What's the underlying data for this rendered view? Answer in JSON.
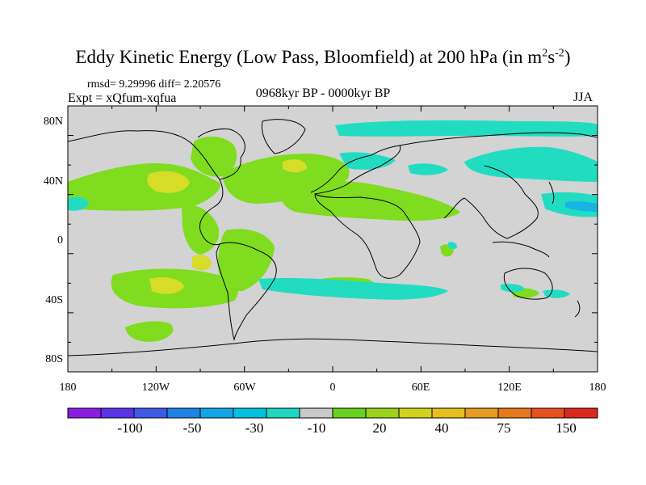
{
  "title_text": "Eddy Kinetic Energy (Low Pass, Bloomfield) at 200 hPa (in m",
  "title_units_sq": "2",
  "title_units_s": "s",
  "title_units_exp": "-2",
  "title_close": ")",
  "stats_line": "rmsd= 9.29996 diff= 2.20576",
  "expt_line": "Expt = xQfum-xqfua",
  "period_line": "0968kyr BP - 0000kyr BP",
  "season": "JJA",
  "lat_labels": [
    "80N",
    "40N",
    "0",
    "40S",
    "80S"
  ],
  "lon_labels": [
    "180",
    "120W",
    "60W",
    "0",
    "60E",
    "120E",
    "180"
  ],
  "colorbar": {
    "colors": [
      "#8a1ee0",
      "#5a32e6",
      "#3c5ae6",
      "#1e82e6",
      "#10a5e6",
      "#00c2e0",
      "#20d6c0",
      "#c8c8c8",
      "#64d21e",
      "#9bd21e",
      "#d2d21e",
      "#e6be1e",
      "#e69b1e",
      "#e6781e",
      "#e6501e",
      "#dc281e"
    ],
    "labels": [
      "-100",
      "-50",
      "-30",
      "-10",
      "20",
      "40",
      "75",
      "150"
    ]
  },
  "palette": {
    "land_bg": "#d3d3d3",
    "green": "#7fdc1e",
    "yellowgreen": "#b4dc1e",
    "yellow": "#d6dc28",
    "cyan": "#22dcc2",
    "blue": "#18b4e6"
  }
}
